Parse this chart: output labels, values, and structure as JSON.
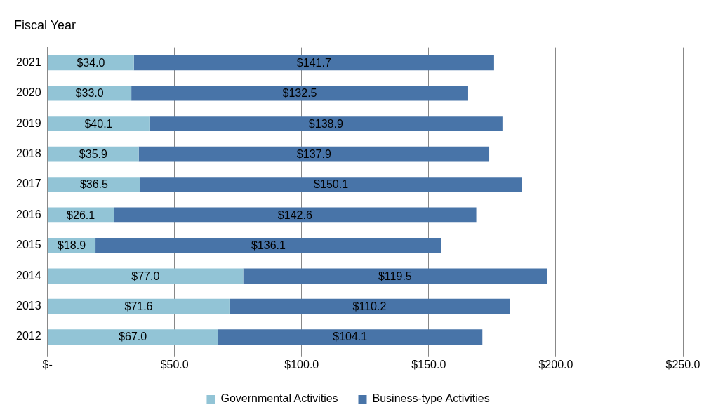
{
  "chart_data": {
    "type": "bar",
    "orientation": "horizontal",
    "stacked": true,
    "title": "Fiscal Year",
    "categories": [
      "2021",
      "2020",
      "2019",
      "2018",
      "2017",
      "2016",
      "2015",
      "2014",
      "2013",
      "2012"
    ],
    "series": [
      {
        "name": "Governmental Activities",
        "color": "#92c4d6",
        "values": [
          34.0,
          33.0,
          40.1,
          35.9,
          36.5,
          26.1,
          18.9,
          77.0,
          71.6,
          67.0
        ],
        "value_labels": [
          "$34.0",
          "$33.0",
          "$40.1",
          "$35.9",
          "$36.5",
          "$26.1",
          "$18.9",
          "$77.0",
          "$71.6",
          "$67.0"
        ]
      },
      {
        "name": "Business-type Activities",
        "color": "#4874a8",
        "values": [
          141.7,
          132.5,
          138.9,
          137.9,
          150.1,
          142.6,
          136.1,
          119.5,
          110.2,
          104.1
        ],
        "value_labels": [
          "$141.7",
          "$132.5",
          "$138.9",
          "$137.9",
          "$150.1",
          "$142.6",
          "$136.1",
          "$119.5",
          "$110.2",
          "$104.1"
        ]
      }
    ],
    "xlim": [
      0,
      250
    ],
    "xticks": [
      {
        "value": 0,
        "label": "$-"
      },
      {
        "value": 50,
        "label": "$50.0"
      },
      {
        "value": 100,
        "label": "$100.0"
      },
      {
        "value": 150,
        "label": "$150.0"
      },
      {
        "value": 200,
        "label": "$200.0"
      },
      {
        "value": 250,
        "label": "$250.0"
      }
    ],
    "grid": "x",
    "legend": "bottom"
  }
}
